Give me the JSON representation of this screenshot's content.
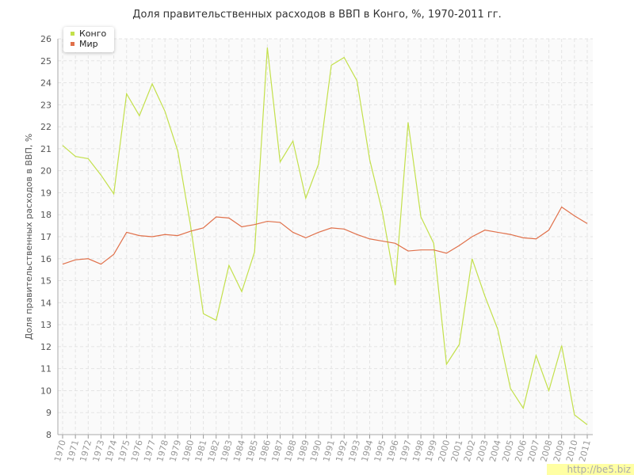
{
  "chart_data": {
    "type": "line",
    "title": "Доля правительственных расходов в ВВП в Конго, %, 1970-2011 гг.",
    "y_label": "Доля правительственных расходов в ВВП, %",
    "watermark": "http://be5.biz",
    "categories": [
      "1970",
      "1971",
      "1972",
      "1973",
      "1974",
      "1975",
      "1976",
      "1977",
      "1978",
      "1979",
      "1980",
      "1981",
      "1982",
      "1983",
      "1984",
      "1985",
      "1986",
      "1987",
      "1988",
      "1989",
      "1990",
      "1991",
      "1992",
      "1993",
      "1994",
      "1995",
      "1996",
      "1997",
      "1998",
      "1999",
      "2000",
      "2001",
      "2002",
      "2003",
      "2004",
      "2005",
      "2006",
      "2007",
      "2008",
      "2009",
      "2010",
      "2011"
    ],
    "series": [
      {
        "name": "Конго",
        "color": "#c3e04b",
        "values": [
          21.15,
          20.65,
          20.55,
          19.8,
          18.95,
          23.5,
          22.5,
          23.95,
          22.7,
          20.9,
          17.5,
          13.5,
          13.2,
          15.7,
          14.5,
          16.3,
          25.6,
          20.4,
          21.35,
          18.75,
          20.3,
          24.8,
          25.15,
          24.1,
          20.5,
          18.1,
          14.8,
          22.2,
          17.9,
          16.7,
          11.2,
          12.1,
          16.0,
          14.3,
          12.8,
          10.1,
          9.2,
          11.6,
          10.0,
          12.05,
          8.9,
          8.45
        ]
      },
      {
        "name": "Мир",
        "color": "#e0704a",
        "values": [
          15.75,
          15.95,
          16.0,
          15.75,
          16.2,
          17.2,
          17.05,
          17.0,
          17.1,
          17.05,
          17.25,
          17.4,
          17.9,
          17.85,
          17.45,
          17.55,
          17.7,
          17.65,
          17.2,
          16.95,
          17.2,
          17.4,
          17.35,
          17.1,
          16.9,
          16.8,
          16.7,
          16.35,
          16.4,
          16.4,
          16.25,
          16.6,
          17.0,
          17.3,
          17.2,
          17.1,
          16.95,
          16.9,
          17.3,
          18.35,
          17.95,
          17.6
        ]
      }
    ],
    "ylim": [
      8,
      26
    ],
    "yticks": [
      8,
      9,
      10,
      11,
      12,
      13,
      14,
      15,
      16,
      17,
      18,
      19,
      20,
      21,
      22,
      23,
      24,
      25,
      26
    ],
    "grid": true,
    "legend": "top-left"
  }
}
